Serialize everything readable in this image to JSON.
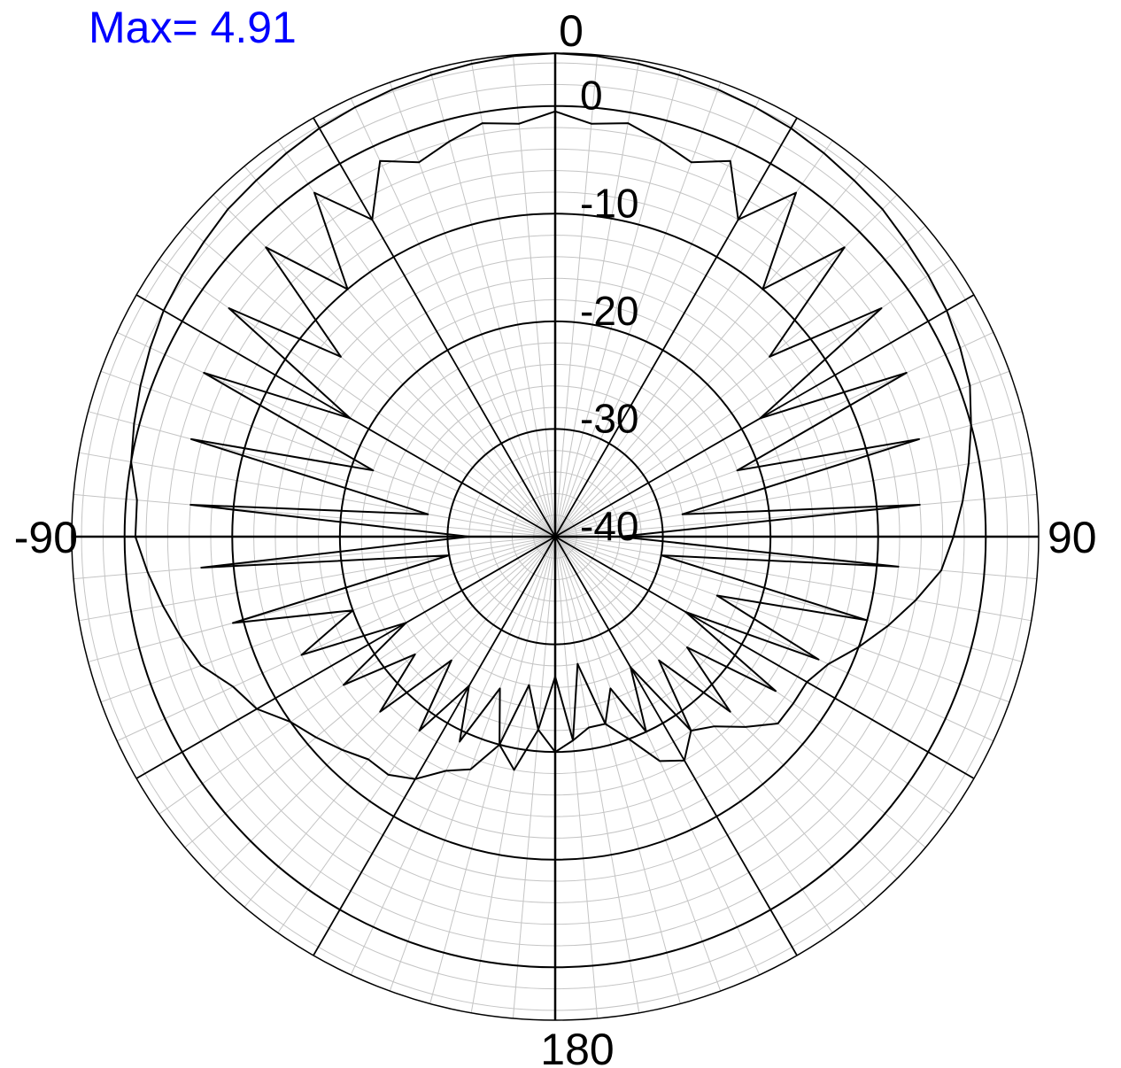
{
  "header": {
    "max_text": "Max= 4.91"
  },
  "chart_data": {
    "type": "polar-line",
    "max_value": 4.91,
    "angle_unit": "degrees",
    "angle_ticks": [
      {
        "angle": 0,
        "label": "0"
      },
      {
        "angle": 90,
        "label": "90"
      },
      {
        "angle": 180,
        "label": "180"
      },
      {
        "angle": -90,
        "label": "-90"
      }
    ],
    "radial_ticks": [
      {
        "value": 0,
        "label": "0"
      },
      {
        "value": -10,
        "label": "-10"
      },
      {
        "value": -20,
        "label": "-20"
      },
      {
        "value": -30,
        "label": "-30"
      },
      {
        "value": -40,
        "label": "-40"
      }
    ],
    "r_min": -40,
    "r_max": 4.91,
    "spoke_step_deg": 30,
    "minor_spoke_step_deg": 5,
    "minor_ring_step": 2,
    "grid": true,
    "series": [
      {
        "points": [
          [
            -180,
            -20
          ],
          [
            -175,
            -22
          ],
          [
            -170,
            -18
          ],
          [
            -165,
            -20
          ],
          [
            -160,
            -17
          ],
          [
            -155,
            -16
          ],
          [
            -150,
            -14
          ],
          [
            -145,
            -13
          ],
          [
            -140,
            -13
          ],
          [
            -135,
            -12
          ],
          [
            -130,
            -11
          ],
          [
            -125,
            -10
          ],
          [
            -120,
            -8
          ],
          [
            -115,
            -7
          ],
          [
            -110,
            -5
          ],
          [
            -105,
            -4
          ],
          [
            -100,
            -3
          ],
          [
            -95,
            -2
          ],
          [
            -90,
            -1
          ],
          [
            -85,
            -1
          ],
          [
            -80,
            0
          ],
          [
            -75,
            0.5
          ],
          [
            -70,
            1
          ],
          [
            -65,
            1.5
          ],
          [
            -60,
            2
          ],
          [
            -55,
            2.3
          ],
          [
            -50,
            2.6
          ],
          [
            -45,
            3
          ],
          [
            -40,
            3.2
          ],
          [
            -35,
            3.5
          ],
          [
            -30,
            3.8
          ],
          [
            -25,
            4
          ],
          [
            -20,
            4.2
          ],
          [
            -15,
            4.4
          ],
          [
            -10,
            4.6
          ],
          [
            -5,
            4.8
          ],
          [
            0,
            4.9
          ],
          [
            5,
            4.8
          ],
          [
            10,
            4.6
          ],
          [
            15,
            4.4
          ],
          [
            20,
            4.2
          ],
          [
            25,
            4
          ],
          [
            30,
            3.8
          ],
          [
            35,
            3.5
          ],
          [
            40,
            3.2
          ],
          [
            45,
            3
          ],
          [
            50,
            2.6
          ],
          [
            55,
            2.3
          ],
          [
            60,
            2
          ],
          [
            65,
            1.5
          ],
          [
            70,
            1
          ],
          [
            75,
            0
          ],
          [
            80,
            -1
          ],
          [
            85,
            -2
          ],
          [
            90,
            -3
          ],
          [
            95,
            -4
          ],
          [
            100,
            -6
          ],
          [
            105,
            -8
          ],
          [
            110,
            -10
          ],
          [
            115,
            -12
          ],
          [
            120,
            -13
          ],
          [
            125,
            -13
          ],
          [
            130,
            -13
          ],
          [
            135,
            -15
          ],
          [
            140,
            -17
          ],
          [
            145,
            -18
          ],
          [
            150,
            -16
          ],
          [
            155,
            -17
          ],
          [
            160,
            -20
          ],
          [
            165,
            -22
          ],
          [
            170,
            -22
          ],
          [
            175,
            -21
          ],
          [
            180,
            -20
          ]
        ]
      },
      {
        "points": [
          [
            -180,
            -27
          ],
          [
            -175,
            -22
          ],
          [
            -170,
            -26
          ],
          [
            -165,
            -20
          ],
          [
            -160,
            -25
          ],
          [
            -155,
            -19
          ],
          [
            -150,
            -24
          ],
          [
            -145,
            -18
          ],
          [
            -140,
            -25
          ],
          [
            -135,
            -17
          ],
          [
            -130,
            -23
          ],
          [
            -125,
            -16
          ],
          [
            -120,
            -24
          ],
          [
            -115,
            -14
          ],
          [
            -110,
            -20
          ],
          [
            -105,
            -9
          ],
          [
            -100,
            -30
          ],
          [
            -95,
            -7
          ],
          [
            -90,
            -32
          ],
          [
            -85,
            -6
          ],
          [
            -80,
            -28
          ],
          [
            -75,
            -5
          ],
          [
            -70,
            -22
          ],
          [
            -65,
            -4
          ],
          [
            -60,
            -18
          ],
          [
            -55,
            -3
          ],
          [
            -50,
            -14
          ],
          [
            -45,
            -2
          ],
          [
            -40,
            -10
          ],
          [
            -35,
            -1
          ],
          [
            -30,
            -6
          ],
          [
            -25,
            -1.5
          ],
          [
            -20,
            -3
          ],
          [
            -15,
            -2
          ],
          [
            -10,
            -1
          ],
          [
            -5,
            -1.5
          ],
          [
            0,
            -0.5
          ],
          [
            5,
            -1.5
          ],
          [
            10,
            -1
          ],
          [
            15,
            -2
          ],
          [
            20,
            -3
          ],
          [
            25,
            -1.5
          ],
          [
            30,
            -6
          ],
          [
            35,
            -1
          ],
          [
            40,
            -10
          ],
          [
            45,
            -2
          ],
          [
            50,
            -14
          ],
          [
            55,
            -3
          ],
          [
            60,
            -18
          ],
          [
            65,
            -4
          ],
          [
            70,
            -22
          ],
          [
            75,
            -5
          ],
          [
            80,
            -28
          ],
          [
            85,
            -6
          ],
          [
            90,
            -34
          ],
          [
            95,
            -8
          ],
          [
            100,
            -30
          ],
          [
            105,
            -10
          ],
          [
            110,
            -24
          ],
          [
            115,
            -13
          ],
          [
            120,
            -26
          ],
          [
            125,
            -15
          ],
          [
            130,
            -24
          ],
          [
            135,
            -17
          ],
          [
            140,
            -25
          ],
          [
            145,
            -18
          ],
          [
            150,
            -26
          ],
          [
            155,
            -20
          ],
          [
            160,
            -25
          ],
          [
            165,
            -22
          ],
          [
            170,
            -28
          ],
          [
            175,
            -21
          ],
          [
            180,
            -27
          ]
        ]
      }
    ]
  }
}
